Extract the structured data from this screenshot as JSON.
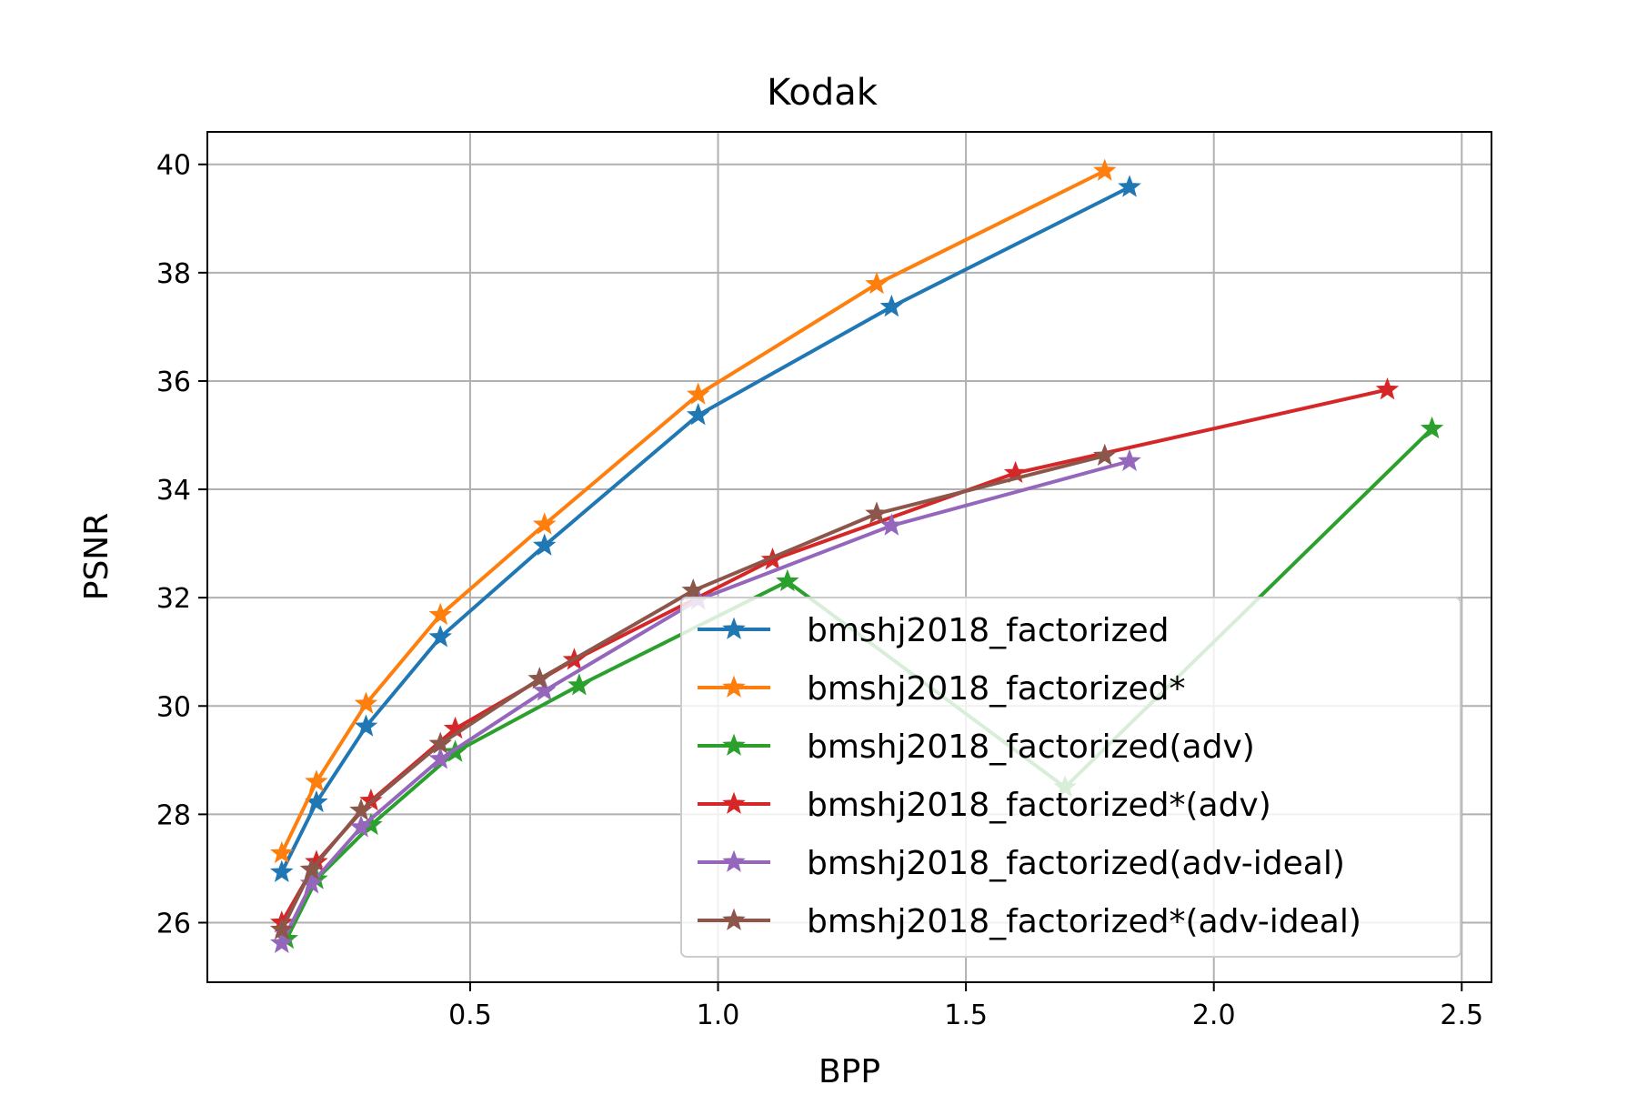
{
  "chart_data": {
    "type": "line",
    "title": "Kodak",
    "xlabel": "BPP",
    "ylabel": "PSNR",
    "xlim": [
      -0.03,
      2.56
    ],
    "ylim": [
      24.9,
      40.6
    ],
    "xticks": [
      0.5,
      1.0,
      1.5,
      2.0,
      2.5
    ],
    "xtick_labels": [
      "0.5",
      "1.0",
      "1.5",
      "2.0",
      "2.5"
    ],
    "yticks": [
      26,
      28,
      30,
      32,
      34,
      36,
      38,
      40
    ],
    "ytick_labels": [
      "26",
      "28",
      "30",
      "32",
      "34",
      "36",
      "38",
      "40"
    ],
    "grid": true,
    "legend_position": "lower-right",
    "marker": "star",
    "series": [
      {
        "name": "bmshj2018_factorized",
        "color": "#1f77b4",
        "x": [
          0.12,
          0.19,
          0.29,
          0.44,
          0.65,
          0.96,
          1.35,
          1.83
        ],
        "y": [
          26.93,
          28.22,
          29.62,
          31.27,
          32.96,
          35.37,
          37.37,
          39.58
        ]
      },
      {
        "name": "bmshj2018_factorized*",
        "color": "#ff7f0e",
        "x": [
          0.12,
          0.19,
          0.29,
          0.44,
          0.65,
          0.96,
          1.32,
          1.78
        ],
        "y": [
          27.28,
          28.6,
          30.04,
          31.68,
          33.35,
          35.75,
          37.79,
          39.88
        ]
      },
      {
        "name": "bmshj2018_factorized(adv)",
        "color": "#2ca02c",
        "x": [
          0.13,
          0.19,
          0.3,
          0.47,
          0.72,
          1.14,
          1.7,
          2.44
        ],
        "y": [
          25.7,
          26.8,
          27.8,
          29.15,
          30.38,
          32.3,
          28.5,
          35.12
        ]
      },
      {
        "name": "bmshj2018_factorized*(adv)",
        "color": "#d62728",
        "x": [
          0.12,
          0.19,
          0.3,
          0.47,
          0.71,
          1.11,
          1.6,
          2.35
        ],
        "y": [
          26.0,
          27.12,
          28.25,
          29.58,
          30.85,
          32.7,
          34.3,
          35.84
        ]
      },
      {
        "name": "bmshj2018_factorized(adv-ideal)",
        "color": "#9467bd",
        "x": [
          0.12,
          0.18,
          0.28,
          0.44,
          0.65,
          0.96,
          1.35,
          1.83
        ],
        "y": [
          25.62,
          26.72,
          27.76,
          29.02,
          30.28,
          31.96,
          33.33,
          34.52
        ]
      },
      {
        "name": "bmshj2018_factorized*(adv-ideal)",
        "color": "#8c564b",
        "x": [
          0.12,
          0.18,
          0.28,
          0.44,
          0.64,
          0.95,
          1.32,
          1.78
        ],
        "y": [
          25.87,
          26.98,
          28.07,
          29.3,
          30.5,
          32.13,
          33.55,
          34.62
        ]
      }
    ]
  }
}
